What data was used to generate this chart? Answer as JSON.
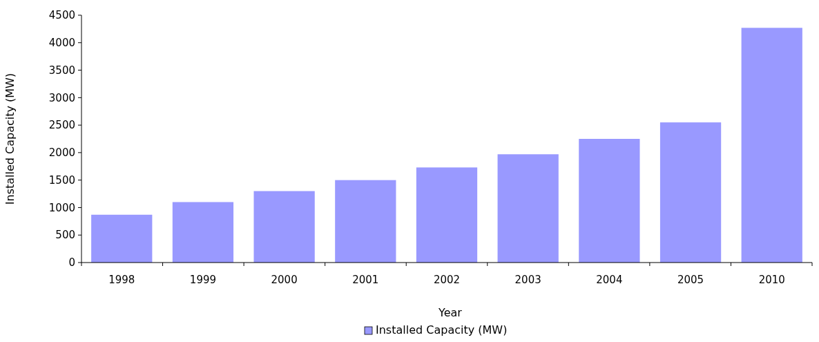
{
  "chart_data": {
    "type": "bar",
    "xlabel": "Year",
    "ylabel": "Installed Capacity (MW)",
    "categories": [
      "1998",
      "1999",
      "2000",
      "2001",
      "2002",
      "2003",
      "2004",
      "2005",
      "2010"
    ],
    "series": [
      {
        "name": "Installed Capacity (MW)",
        "color": "#9999ff",
        "values": [
          870,
          1100,
          1300,
          1500,
          1730,
          1970,
          2250,
          2550,
          4270
        ]
      }
    ],
    "ylim": [
      0,
      4500
    ],
    "yticks": [
      0,
      500,
      1000,
      1500,
      2000,
      2500,
      3000,
      3500,
      4000,
      4500
    ],
    "grid": false,
    "legend": "bottom"
  }
}
